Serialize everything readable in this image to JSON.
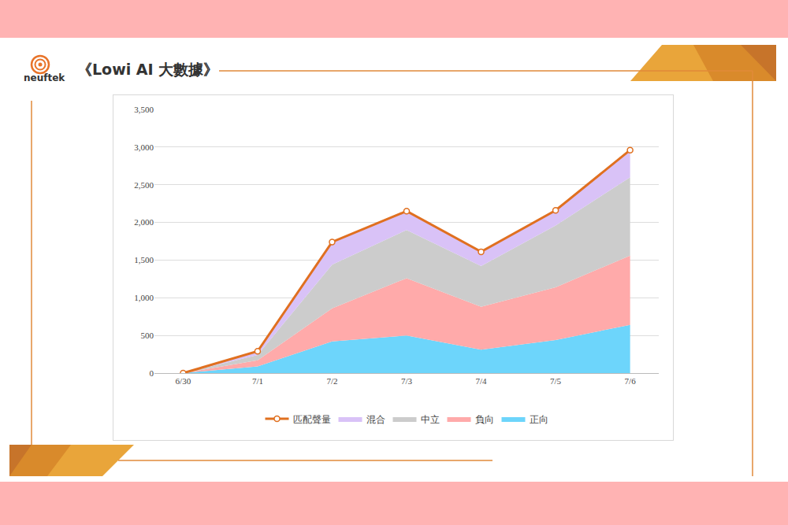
{
  "header": {
    "logo_text": "neuftek",
    "title": "《Lowi AI 大數據》"
  },
  "chart_data": {
    "type": "area",
    "stacked": true,
    "categories": [
      "6/30",
      "7/1",
      "7/2",
      "7/3",
      "7/4",
      "7/5",
      "7/6"
    ],
    "series": [
      {
        "name": "正向",
        "type": "area",
        "color": "#6dd5fb",
        "values": [
          0,
          90,
          420,
          500,
          310,
          440,
          640
        ]
      },
      {
        "name": "負向",
        "type": "area",
        "color": "#ffaaaa",
        "values": [
          0,
          80,
          440,
          760,
          570,
          700,
          920
        ]
      },
      {
        "name": "中立",
        "type": "area",
        "color": "#cccccc",
        "values": [
          0,
          70,
          580,
          640,
          540,
          820,
          1040
        ]
      },
      {
        "name": "混合",
        "type": "area",
        "color": "#d9c2f7",
        "values": [
          0,
          50,
          300,
          250,
          190,
          200,
          360
        ]
      },
      {
        "name": "匹配聲量",
        "type": "line",
        "color": "#e07020",
        "marker": "circle",
        "values": [
          0,
          290,
          1740,
          2150,
          1610,
          2160,
          2960
        ]
      }
    ],
    "ylim": [
      0,
      3500
    ],
    "yticks": [
      0,
      500,
      {
        "value": 1000,
        "label": "1,000"
      },
      {
        "value": 1500,
        "label": "1,500"
      },
      {
        "value": 2000,
        "label": "2,000"
      },
      {
        "value": 2500,
        "label": "2,500"
      },
      {
        "value": 3000,
        "label": "3,000"
      },
      {
        "value": 3500,
        "label": "3,500"
      }
    ],
    "grid": true,
    "legend": "bottom"
  }
}
